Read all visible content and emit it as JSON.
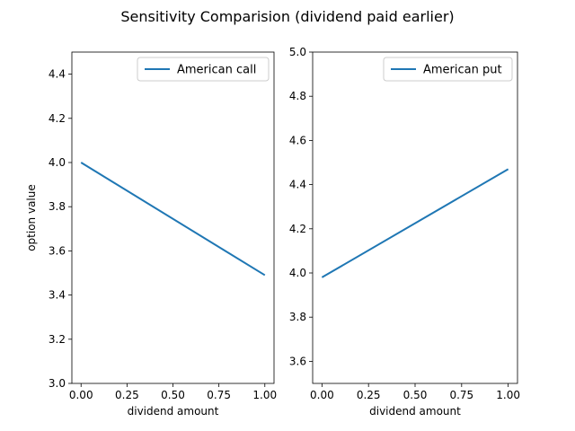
{
  "figure": {
    "title": "Sensitivity Comparision (dividend paid earlier)"
  },
  "chart_data": [
    {
      "type": "line",
      "title": "",
      "xlabel": "dividend amount",
      "ylabel": "option value",
      "xlim": [
        -0.05,
        1.05
      ],
      "ylim": [
        3.0,
        4.5
      ],
      "xticks": [
        0.0,
        0.25,
        0.5,
        0.75,
        1.0
      ],
      "xtick_labels": [
        "0.00",
        "0.25",
        "0.50",
        "0.75",
        "1.00"
      ],
      "yticks": [
        3.0,
        3.2,
        3.4,
        3.6,
        3.8,
        4.0,
        4.2,
        4.4
      ],
      "ytick_labels": [
        "3.0",
        "3.2",
        "3.4",
        "3.6",
        "3.8",
        "4.0",
        "4.2",
        "4.4"
      ],
      "grid": false,
      "legend": "top-right",
      "series": [
        {
          "name": "American call",
          "color": "#1f77b4",
          "x": [
            0.0,
            1.0
          ],
          "y": [
            4.0,
            3.49
          ]
        }
      ]
    },
    {
      "type": "line",
      "title": "",
      "xlabel": "dividend amount",
      "ylabel": "",
      "xlim": [
        -0.05,
        1.05
      ],
      "ylim": [
        3.5,
        5.0
      ],
      "xticks": [
        0.0,
        0.25,
        0.5,
        0.75,
        1.0
      ],
      "xtick_labels": [
        "0.00",
        "0.25",
        "0.50",
        "0.75",
        "1.00"
      ],
      "yticks": [
        3.6,
        3.8,
        4.0,
        4.2,
        4.4,
        4.6,
        4.8,
        5.0
      ],
      "ytick_labels": [
        "3.6",
        "3.8",
        "4.0",
        "4.2",
        "4.4",
        "4.6",
        "4.8",
        "5.0"
      ],
      "grid": false,
      "legend": "top-right",
      "series": [
        {
          "name": "American put",
          "color": "#1f77b4",
          "x": [
            0.0,
            1.0
          ],
          "y": [
            3.98,
            4.47
          ]
        }
      ]
    }
  ]
}
